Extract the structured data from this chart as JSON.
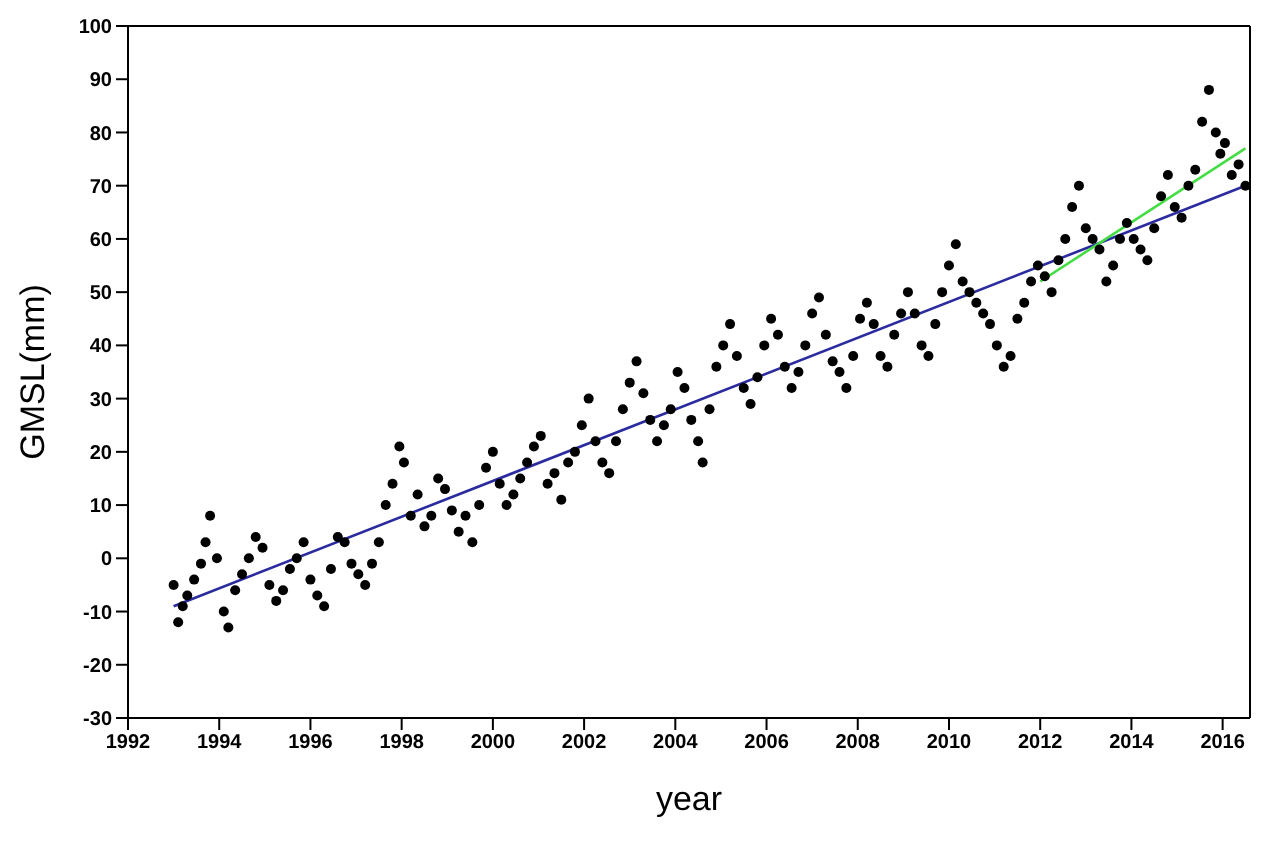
{
  "chart_data": {
    "type": "scatter",
    "xlabel": "year",
    "ylabel": "GMSL(mm)",
    "xlim": [
      1992,
      2016.6
    ],
    "ylim": [
      -30,
      100
    ],
    "xticks": [
      1992,
      1994,
      1996,
      1998,
      2000,
      2002,
      2004,
      2006,
      2008,
      2010,
      2012,
      2014,
      2016
    ],
    "yticks": [
      -30,
      -20,
      -10,
      0,
      10,
      20,
      30,
      40,
      50,
      60,
      70,
      80,
      90,
      100
    ],
    "series": [
      {
        "color": "#000000",
        "marker": "circle",
        "x": [
          1993.0,
          1993.1,
          1993.2,
          1993.3,
          1993.45,
          1993.6,
          1993.7,
          1993.8,
          1993.95,
          1994.1,
          1994.2,
          1994.35,
          1994.5,
          1994.65,
          1994.8,
          1994.95,
          1995.1,
          1995.25,
          1995.4,
          1995.55,
          1995.7,
          1995.85,
          1996.0,
          1996.15,
          1996.3,
          1996.45,
          1996.6,
          1996.75,
          1996.9,
          1997.05,
          1997.2,
          1997.35,
          1997.5,
          1997.65,
          1997.8,
          1997.95,
          1998.05,
          1998.2,
          1998.35,
          1998.5,
          1998.65,
          1998.8,
          1998.95,
          1999.1,
          1999.25,
          1999.4,
          1999.55,
          1999.7,
          1999.85,
          2000.0,
          2000.15,
          2000.3,
          2000.45,
          2000.6,
          2000.75,
          2000.9,
          2001.05,
          2001.2,
          2001.35,
          2001.5,
          2001.65,
          2001.8,
          2001.95,
          2002.1,
          2002.25,
          2002.4,
          2002.55,
          2002.7,
          2002.85,
          2003.0,
          2003.15,
          2003.3,
          2003.45,
          2003.6,
          2003.75,
          2003.9,
          2004.05,
          2004.2,
          2004.35,
          2004.5,
          2004.6,
          2004.75,
          2004.9,
          2005.05,
          2005.2,
          2005.35,
          2005.5,
          2005.65,
          2005.8,
          2005.95,
          2006.1,
          2006.25,
          2006.4,
          2006.55,
          2006.7,
          2006.85,
          2007.0,
          2007.15,
          2007.3,
          2007.45,
          2007.6,
          2007.75,
          2007.9,
          2008.05,
          2008.2,
          2008.35,
          2008.5,
          2008.65,
          2008.8,
          2008.95,
          2009.1,
          2009.25,
          2009.4,
          2009.55,
          2009.7,
          2009.85,
          2010.0,
          2010.15,
          2010.3,
          2010.45,
          2010.6,
          2010.75,
          2010.9,
          2011.05,
          2011.2,
          2011.35,
          2011.5,
          2011.65,
          2011.8,
          2011.95,
          2012.1,
          2012.25,
          2012.4,
          2012.55,
          2012.7,
          2012.85,
          2013.0,
          2013.15,
          2013.3,
          2013.45,
          2013.6,
          2013.75,
          2013.9,
          2014.05,
          2014.2,
          2014.35,
          2014.5,
          2014.65,
          2014.8,
          2014.95,
          2015.1,
          2015.25,
          2015.4,
          2015.55,
          2015.7,
          2015.85,
          2015.95,
          2016.05,
          2016.2,
          2016.35,
          2016.5
        ],
        "values": [
          -5,
          -12,
          -9,
          -7,
          -4,
          -1,
          3,
          8,
          0,
          -10,
          -13,
          -6,
          -3,
          0,
          4,
          2,
          -5,
          -8,
          -6,
          -2,
          0,
          3,
          -4,
          -7,
          -9,
          -2,
          4,
          3,
          -1,
          -3,
          -5,
          -1,
          3,
          10,
          14,
          21,
          18,
          8,
          12,
          6,
          8,
          15,
          13,
          9,
          5,
          8,
          3,
          10,
          17,
          20,
          14,
          10,
          12,
          15,
          18,
          21,
          23,
          14,
          16,
          11,
          18,
          20,
          25,
          30,
          22,
          18,
          16,
          22,
          28,
          33,
          37,
          31,
          26,
          22,
          25,
          28,
          35,
          32,
          26,
          22,
          18,
          28,
          36,
          40,
          44,
          38,
          32,
          29,
          34,
          40,
          45,
          42,
          36,
          32,
          35,
          40,
          46,
          49,
          42,
          37,
          35,
          32,
          38,
          45,
          48,
          44,
          38,
          36,
          42,
          46,
          50,
          46,
          40,
          38,
          44,
          50,
          55,
          59,
          52,
          50,
          48,
          46,
          44,
          40,
          36,
          38,
          45,
          48,
          52,
          55,
          53,
          50,
          56,
          60,
          66,
          70,
          62,
          60,
          58,
          52,
          55,
          60,
          63,
          60,
          58,
          56,
          62,
          68,
          72,
          66,
          64,
          70,
          73,
          82,
          88,
          80,
          76,
          78,
          72,
          74,
          70
        ]
      },
      {
        "type": "line",
        "marker": "none",
        "color": "#2b2ba0",
        "x": [
          1993.0,
          2016.5
        ],
        "values": [
          -9,
          70
        ]
      },
      {
        "type": "line",
        "marker": "none",
        "color": "#44dd44",
        "x": [
          2012.0,
          2016.5
        ],
        "values": [
          52,
          77
        ]
      }
    ]
  }
}
